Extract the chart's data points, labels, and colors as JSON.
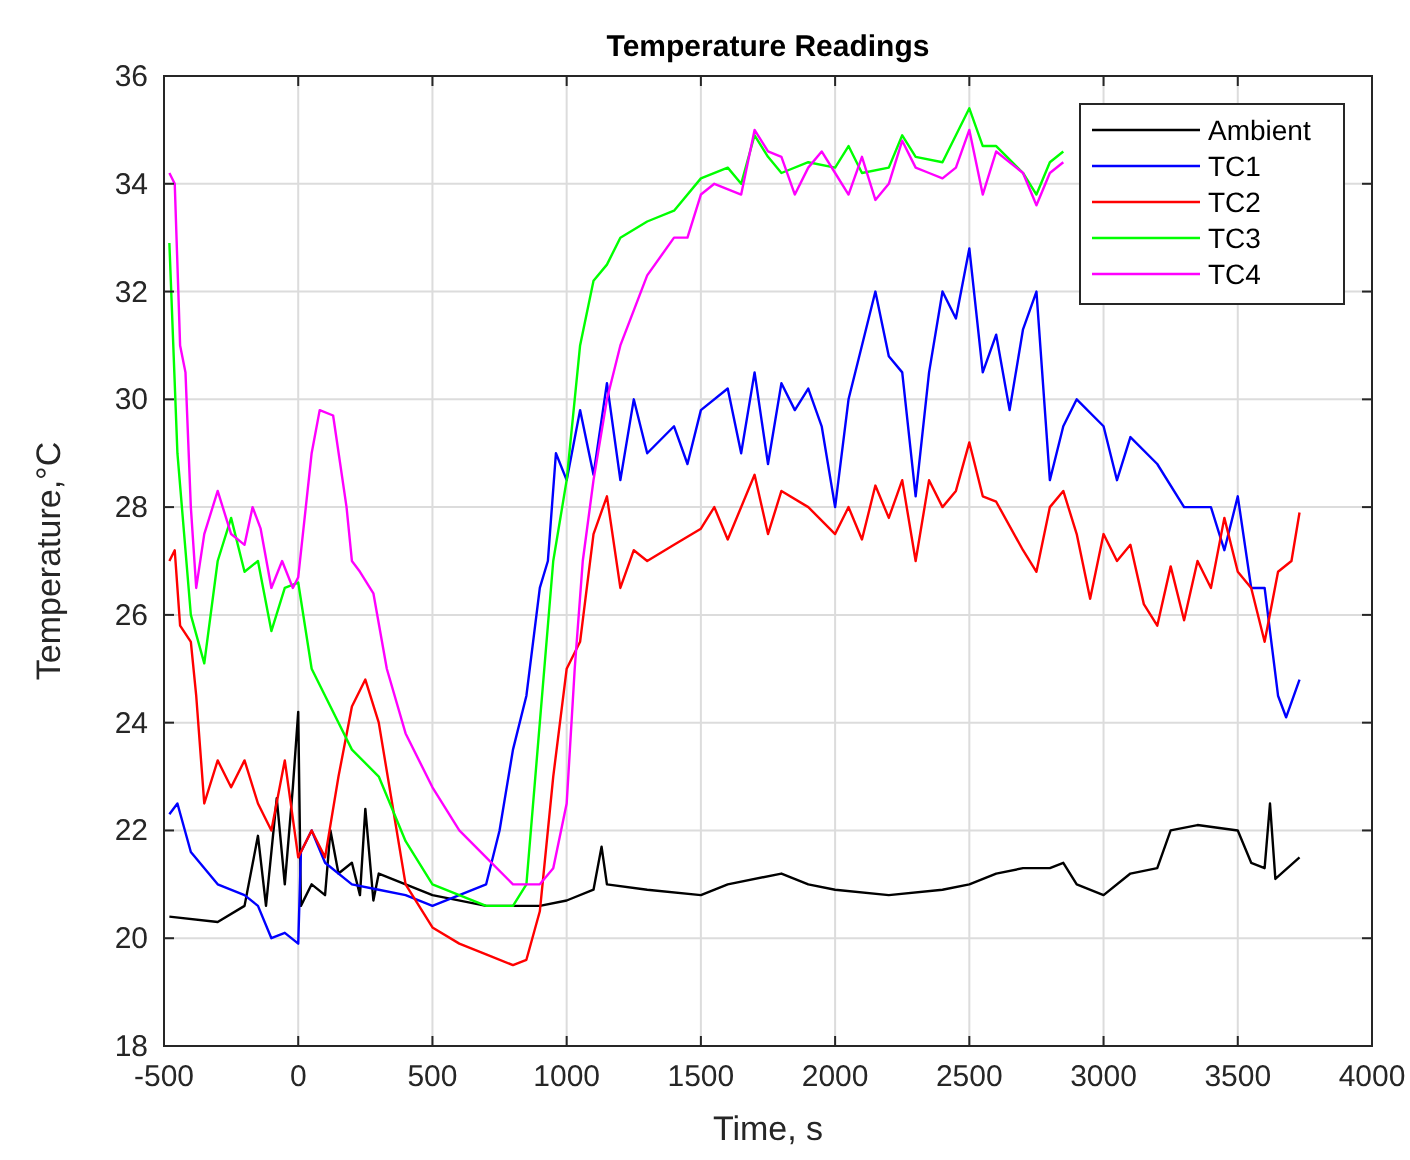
{
  "chart_data": {
    "type": "line",
    "title": "Temperature Readings",
    "xlabel": "Time, s",
    "ylabel": "Temperature,°C",
    "xlim": [
      -500,
      4000
    ],
    "xticks": [
      -500,
      0,
      500,
      1000,
      1500,
      2000,
      2500,
      3000,
      3500,
      4000
    ],
    "ylim": [
      18,
      36
    ],
    "yticks": [
      18,
      20,
      22,
      24,
      26,
      28,
      30,
      32,
      34,
      36
    ],
    "grid": true,
    "legend": "top right",
    "marker": "none",
    "line_style": "solid",
    "series": [
      {
        "name": "Ambient",
        "color": "#000000",
        "x": [
          -480,
          -300,
          -200,
          -150,
          -120,
          -80,
          -50,
          -20,
          0,
          10,
          50,
          100,
          120,
          150,
          200,
          230,
          250,
          280,
          300,
          400,
          500,
          700,
          900,
          1000,
          1100,
          1130,
          1150,
          1300,
          1500,
          1600,
          1800,
          1900,
          2000,
          2200,
          2400,
          2500,
          2600,
          2700,
          2800,
          2850,
          2900,
          3000,
          3100,
          3200,
          3250,
          3350,
          3500,
          3550,
          3600,
          3620,
          3640,
          3730
        ],
        "values": [
          20.4,
          20.3,
          20.6,
          21.9,
          20.6,
          22.6,
          21.0,
          22.8,
          24.2,
          20.6,
          21.0,
          20.8,
          22.0,
          21.2,
          21.4,
          20.8,
          22.4,
          20.7,
          21.2,
          21.0,
          20.8,
          20.6,
          20.6,
          20.7,
          20.9,
          21.7,
          21.0,
          20.9,
          20.8,
          21.0,
          21.2,
          21.0,
          20.9,
          20.8,
          20.9,
          21.0,
          21.2,
          21.3,
          21.3,
          21.4,
          21.0,
          20.8,
          21.2,
          21.3,
          22.0,
          22.1,
          22.0,
          21.4,
          21.3,
          22.5,
          21.1,
          21.5
        ]
      },
      {
        "name": "TC1",
        "color": "#0000ff",
        "x": [
          -480,
          -450,
          -400,
          -300,
          -200,
          -150,
          -100,
          -50,
          0,
          10,
          50,
          100,
          200,
          300,
          400,
          500,
          600,
          700,
          750,
          800,
          850,
          900,
          930,
          960,
          1000,
          1050,
          1100,
          1150,
          1200,
          1250,
          1300,
          1400,
          1450,
          1500,
          1600,
          1650,
          1700,
          1750,
          1800,
          1850,
          1900,
          1950,
          2000,
          2050,
          2100,
          2150,
          2200,
          2250,
          2300,
          2350,
          2400,
          2450,
          2500,
          2550,
          2600,
          2650,
          2700,
          2750,
          2800,
          2850,
          2900,
          3000,
          3050,
          3100,
          3200,
          3300,
          3400,
          3450,
          3500,
          3550,
          3600,
          3650,
          3680,
          3730
        ],
        "values": [
          22.3,
          22.5,
          21.6,
          21.0,
          20.8,
          20.6,
          20.0,
          20.1,
          19.9,
          21.6,
          22.0,
          21.4,
          21.0,
          20.9,
          20.8,
          20.6,
          20.8,
          21.0,
          22.0,
          23.5,
          24.5,
          26.5,
          27.0,
          29.0,
          28.5,
          29.8,
          28.6,
          30.3,
          28.5,
          30.0,
          29.0,
          29.5,
          28.8,
          29.8,
          30.2,
          29.0,
          30.5,
          28.8,
          30.3,
          29.8,
          30.2,
          29.5,
          28.0,
          30.0,
          31.0,
          32.0,
          30.8,
          30.5,
          28.2,
          30.5,
          32.0,
          31.5,
          32.8,
          30.5,
          31.2,
          29.8,
          31.3,
          32.0,
          28.5,
          29.5,
          30.0,
          29.5,
          28.5,
          29.3,
          28.8,
          28.0,
          28.0,
          27.2,
          28.2,
          26.5,
          26.5,
          24.5,
          24.1,
          24.8
        ]
      },
      {
        "name": "TC2",
        "color": "#ff0000",
        "x": [
          -480,
          -460,
          -440,
          -400,
          -380,
          -350,
          -300,
          -250,
          -200,
          -150,
          -100,
          -50,
          0,
          50,
          100,
          150,
          200,
          250,
          300,
          350,
          400,
          500,
          600,
          700,
          800,
          850,
          900,
          950,
          1000,
          1050,
          1100,
          1150,
          1200,
          1250,
          1300,
          1400,
          1500,
          1550,
          1600,
          1700,
          1750,
          1800,
          1900,
          2000,
          2050,
          2100,
          2150,
          2200,
          2250,
          2300,
          2350,
          2400,
          2450,
          2500,
          2550,
          2600,
          2700,
          2750,
          2800,
          2850,
          2900,
          2950,
          3000,
          3050,
          3100,
          3150,
          3200,
          3250,
          3300,
          3350,
          3400,
          3450,
          3500,
          3550,
          3600,
          3650,
          3700,
          3730
        ],
        "values": [
          27.0,
          27.2,
          25.8,
          25.5,
          24.5,
          22.5,
          23.3,
          22.8,
          23.3,
          22.5,
          22.0,
          23.3,
          21.5,
          22.0,
          21.5,
          23.0,
          24.3,
          24.8,
          24.0,
          22.5,
          21.0,
          20.2,
          19.9,
          19.7,
          19.5,
          19.6,
          20.5,
          23.0,
          25.0,
          25.5,
          27.5,
          28.2,
          26.5,
          27.2,
          27.0,
          27.3,
          27.6,
          28.0,
          27.4,
          28.6,
          27.5,
          28.3,
          28.0,
          27.5,
          28.0,
          27.4,
          28.4,
          27.8,
          28.5,
          27.0,
          28.5,
          28.0,
          28.3,
          29.2,
          28.2,
          28.1,
          27.2,
          26.8,
          28.0,
          28.3,
          27.5,
          26.3,
          27.5,
          27.0,
          27.3,
          26.2,
          25.8,
          26.9,
          25.9,
          27.0,
          26.5,
          27.8,
          26.8,
          26.5,
          25.5,
          26.8,
          27.0,
          27.9
        ]
      },
      {
        "name": "TC3",
        "color": "#00ff00",
        "x": [
          -480,
          -450,
          -400,
          -350,
          -300,
          -250,
          -200,
          -150,
          -100,
          -50,
          0,
          50,
          100,
          200,
          300,
          400,
          500,
          600,
          700,
          800,
          850,
          900,
          950,
          1000,
          1050,
          1100,
          1150,
          1200,
          1300,
          1400,
          1500,
          1600,
          1650,
          1700,
          1750,
          1800,
          1900,
          2000,
          2050,
          2100,
          2200,
          2250,
          2300,
          2400,
          2500,
          2550,
          2600,
          2700,
          2750,
          2800,
          2850
        ],
        "values": [
          32.9,
          29.0,
          26.0,
          25.1,
          27.0,
          27.8,
          26.8,
          27.0,
          25.7,
          26.5,
          26.6,
          25.0,
          24.5,
          23.5,
          23.0,
          21.8,
          21.0,
          20.8,
          20.6,
          20.6,
          21.0,
          24.0,
          27.0,
          28.5,
          31.0,
          32.2,
          32.5,
          33.0,
          33.3,
          33.5,
          34.1,
          34.3,
          34.0,
          34.9,
          34.5,
          34.2,
          34.4,
          34.3,
          34.7,
          34.2,
          34.3,
          34.9,
          34.5,
          34.4,
          35.4,
          34.7,
          34.7,
          34.2,
          33.8,
          34.4,
          34.6
        ]
      },
      {
        "name": "TC4",
        "color": "#ff00ff",
        "x": [
          -480,
          -460,
          -440,
          -420,
          -400,
          -380,
          -350,
          -300,
          -250,
          -200,
          -170,
          -140,
          -100,
          -60,
          -20,
          0,
          50,
          80,
          130,
          180,
          200,
          230,
          280,
          330,
          400,
          500,
          600,
          700,
          800,
          900,
          950,
          1000,
          1030,
          1060,
          1100,
          1150,
          1200,
          1300,
          1400,
          1450,
          1500,
          1550,
          1650,
          1700,
          1750,
          1800,
          1850,
          1900,
          1950,
          2000,
          2050,
          2100,
          2150,
          2200,
          2250,
          2300,
          2350,
          2400,
          2450,
          2500,
          2550,
          2600,
          2700,
          2750,
          2800,
          2850
        ],
        "values": [
          34.2,
          34.0,
          31.0,
          30.5,
          28.0,
          26.5,
          27.5,
          28.3,
          27.5,
          27.3,
          28.0,
          27.6,
          26.5,
          27.0,
          26.5,
          26.7,
          29.0,
          29.8,
          29.7,
          28.0,
          27.0,
          26.8,
          26.4,
          25.0,
          23.8,
          22.8,
          22.0,
          21.5,
          21.0,
          21.0,
          21.3,
          22.5,
          25.0,
          27.0,
          28.5,
          30.0,
          31.0,
          32.3,
          33.0,
          33.0,
          33.8,
          34.0,
          33.8,
          35.0,
          34.6,
          34.5,
          33.8,
          34.3,
          34.6,
          34.2,
          33.8,
          34.5,
          33.7,
          34.0,
          34.8,
          34.3,
          34.2,
          34.1,
          34.3,
          35.0,
          33.8,
          34.6,
          34.2,
          33.6,
          34.2,
          34.4
        ]
      }
    ]
  }
}
